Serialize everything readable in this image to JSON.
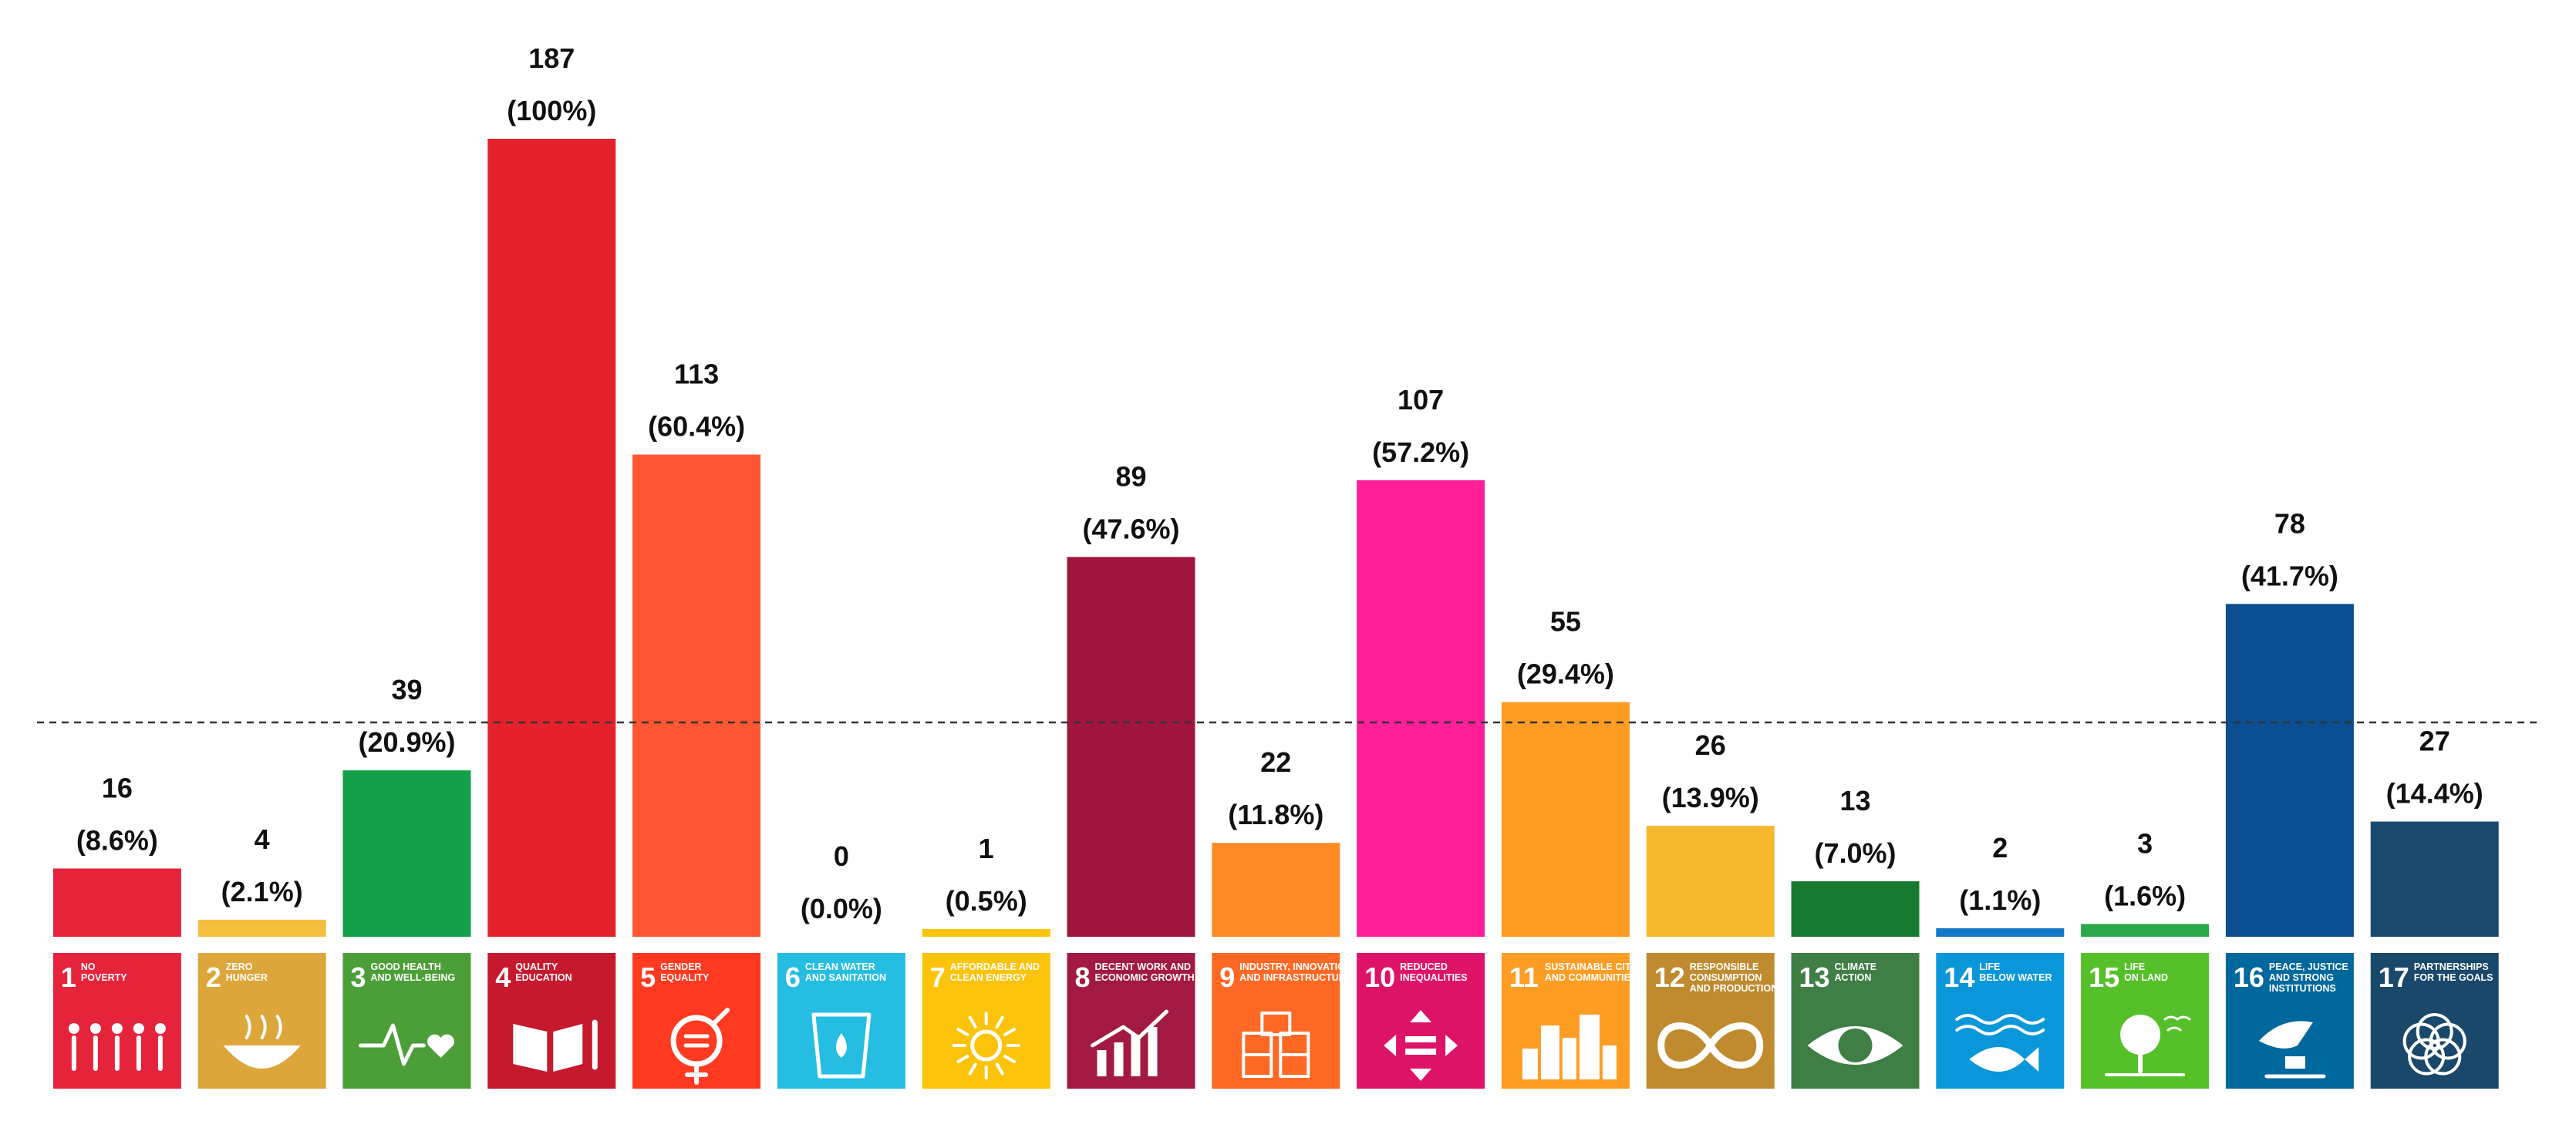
{
  "chart_data": {
    "type": "bar",
    "title": "",
    "xlabel": "",
    "ylabel": "",
    "ylim": [
      0,
      187
    ],
    "grid": false,
    "reference_line": {
      "style": "dashed",
      "value": 62
    },
    "categories": [
      {
        "num": "1",
        "caption": [
          "NO",
          "POVERTY"
        ],
        "icon": "family-icon"
      },
      {
        "num": "2",
        "caption": [
          "ZERO",
          "HUNGER"
        ],
        "icon": "bowl-icon"
      },
      {
        "num": "3",
        "caption": [
          "GOOD HEALTH",
          "AND WELL-BEING"
        ],
        "icon": "heartbeat-icon"
      },
      {
        "num": "4",
        "caption": [
          "QUALITY",
          "EDUCATION"
        ],
        "icon": "book-pencil-icon"
      },
      {
        "num": "5",
        "caption": [
          "GENDER",
          "EQUALITY"
        ],
        "icon": "gender-equality-icon"
      },
      {
        "num": "6",
        "caption": [
          "CLEAN WATER",
          "AND SANITATION"
        ],
        "icon": "water-glass-icon"
      },
      {
        "num": "7",
        "caption": [
          "AFFORDABLE AND",
          "CLEAN ENERGY"
        ],
        "icon": "sun-power-icon"
      },
      {
        "num": "8",
        "caption": [
          "DECENT WORK AND",
          "ECONOMIC GROWTH"
        ],
        "icon": "growth-chart-icon"
      },
      {
        "num": "9",
        "caption": [
          "INDUSTRY, INNOVATION",
          "AND INFRASTRUCTURE"
        ],
        "icon": "cubes-icon"
      },
      {
        "num": "10",
        "caption": [
          "REDUCED",
          "INEQUALITIES"
        ],
        "icon": "equality-arrows-icon"
      },
      {
        "num": "11",
        "caption": [
          "SUSTAINABLE CITIES",
          "AND COMMUNITIES"
        ],
        "icon": "city-icon"
      },
      {
        "num": "12",
        "caption": [
          "RESPONSIBLE",
          "CONSUMPTION",
          "AND PRODUCTION"
        ],
        "icon": "infinity-icon"
      },
      {
        "num": "13",
        "caption": [
          "CLIMATE",
          "ACTION"
        ],
        "icon": "eye-globe-icon"
      },
      {
        "num": "14",
        "caption": [
          "LIFE",
          "BELOW WATER"
        ],
        "icon": "fish-icon"
      },
      {
        "num": "15",
        "caption": [
          "LIFE",
          "ON LAND"
        ],
        "icon": "tree-icon"
      },
      {
        "num": "16",
        "caption": [
          "PEACE, JUSTICE",
          "AND STRONG",
          "INSTITUTIONS"
        ],
        "icon": "dove-gavel-icon"
      },
      {
        "num": "17",
        "caption": [
          "PARTNERSHIPS",
          "FOR THE GOALS"
        ],
        "icon": "rings-flower-icon"
      }
    ],
    "values": [
      16,
      4,
      39,
      187,
      113,
      0,
      1,
      89,
      22,
      107,
      55,
      26,
      13,
      2,
      3,
      78,
      27
    ],
    "percentages": [
      "(8.6%)",
      "(2.1%)",
      "(20.9%)",
      "(100%)",
      "(60.4%)",
      "(0.0%)",
      "(0.5%)",
      "(47.6%)",
      "(11.8%)",
      "(57.2%)",
      "(29.4%)",
      "(13.9%)",
      "(7.0%)",
      "(1.1%)",
      "(1.6%)",
      "(41.7%)",
      "(14.4%)"
    ],
    "colors": [
      "#E5243B",
      "#F5BE3E",
      "#16A34A",
      "#C5192D",
      "#FF3A21",
      "#26BDE2",
      "#FCC30B",
      "#A21942",
      "#FD6925",
      "#DD1367",
      "#FD9D24",
      "#BF8B2E",
      "#3F7E44",
      "#0A97D9",
      "#56C02B",
      "#00689D",
      "#19486A"
    ],
    "bar_colors": [
      "#E5243B",
      "#F5BE3E",
      "#14A049",
      "#E5222C",
      "#FF5733",
      "#26BDE2",
      "#FCC30B",
      "#A0153E",
      "#FD8A25",
      "#FF2098",
      "#FD9D24",
      "#F5B82E",
      "#187A30",
      "#1277C6",
      "#2AA84A",
      "#0B4F92",
      "#1B4A6E"
    ],
    "tile_colors": [
      "#E5243B",
      "#DDA63A",
      "#4C9F38",
      "#C5192D",
      "#FF3A21",
      "#26BDE2",
      "#FCC30B",
      "#A21942",
      "#FD6925",
      "#DD1367",
      "#FD9D24",
      "#BF8B2E",
      "#3F7E44",
      "#0A97D9",
      "#56C02B",
      "#00689D",
      "#19486A"
    ]
  }
}
